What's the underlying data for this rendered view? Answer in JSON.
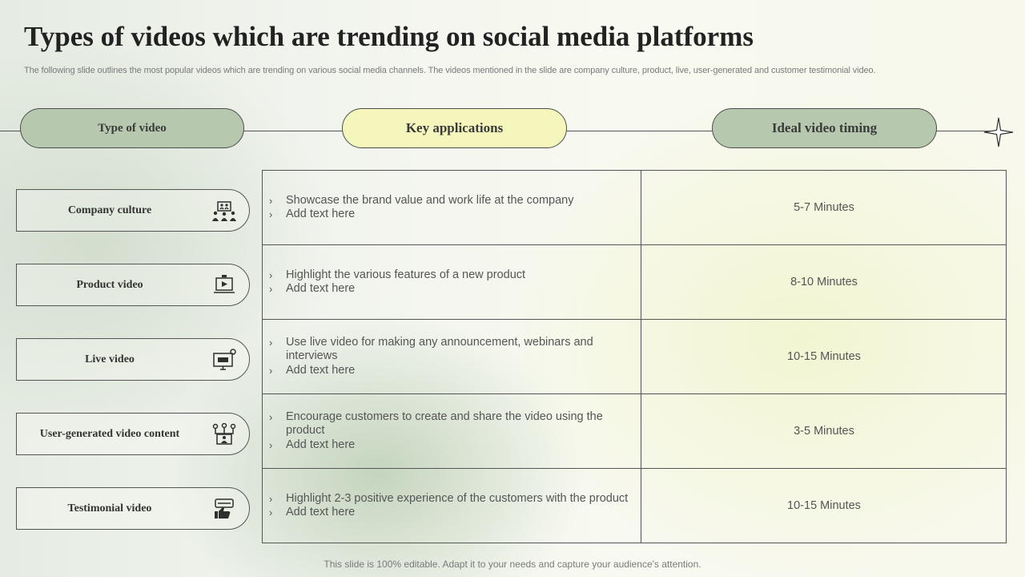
{
  "title": "Types of videos which are trending on social media platforms",
  "subtitle": "The following slide outlines the most popular videos which are trending on various social media channels. The videos mentioned in the slide are company culture, product, live, user-generated and customer testimonial video.",
  "headers": {
    "type": "Type of video",
    "key": "Key applications",
    "ideal": "Ideal video timing"
  },
  "rows": [
    {
      "type": "Company culture",
      "icon": "team-presentation-icon",
      "apps": [
        "Showcase the brand value and work life at the company",
        "Add text here"
      ],
      "timing": "5-7 Minutes"
    },
    {
      "type": "Product video",
      "icon": "laptop-video-icon",
      "apps": [
        "Highlight the various features of a new product",
        "Add text here"
      ],
      "timing": "8-10 Minutes"
    },
    {
      "type": "Live video",
      "icon": "live-monitor-icon",
      "apps": [
        "Use live video for making any announcement, webinars and interviews",
        "Add text here"
      ],
      "timing": "10-15 Minutes"
    },
    {
      "type": "User-generated video content",
      "icon": "user-network-icon",
      "apps": [
        "Encourage customers to create and share the video using the product",
        "Add text here"
      ],
      "timing": "3-5 Minutes"
    },
    {
      "type": "Testimonial video",
      "icon": "thumbs-up-review-icon",
      "apps": [
        "Highlight 2-3 positive experience of the customers with the product",
        "Add text here"
      ],
      "timing": "10-15 Minutes"
    }
  ],
  "bullet": "›",
  "footer": "This slide is 100% editable. Adapt it to your needs and capture your audience's attention.",
  "colors": {
    "sage": "#b6c8ad",
    "cream": "#f5f6bc",
    "line": "#555555"
  }
}
